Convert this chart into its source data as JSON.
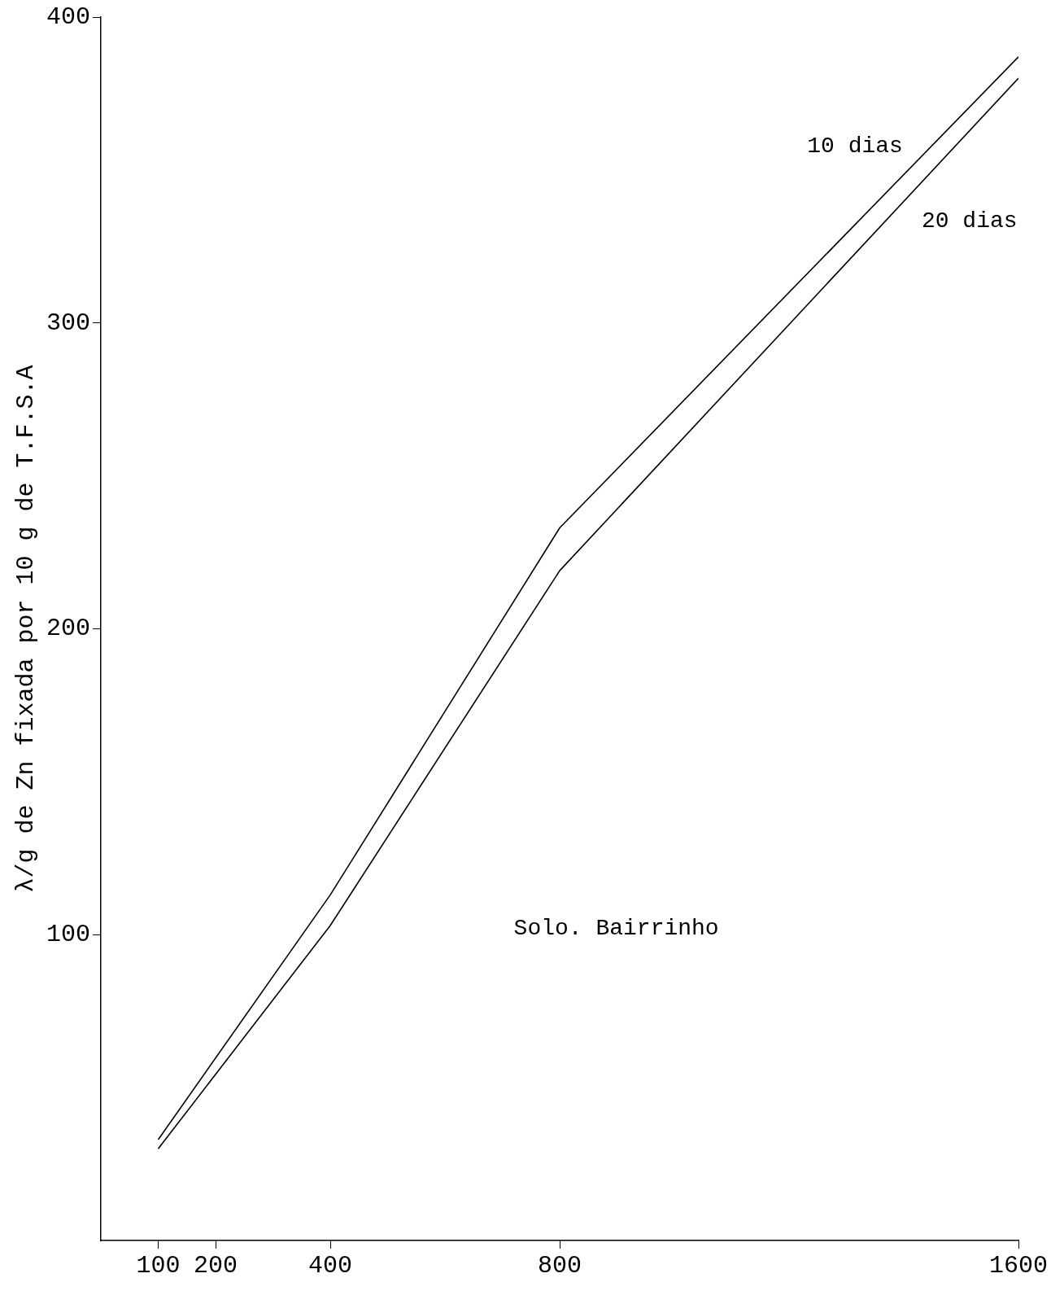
{
  "chart_data": {
    "type": "line",
    "ylabel": "λ/g de Zn fixada por 10 g de T.F.S.A",
    "annotations": [
      "Solo. Bairrinho"
    ],
    "x": [
      100,
      400,
      800,
      1600
    ],
    "series": [
      {
        "name": "10 dias",
        "color": "#000000",
        "values": [
          33,
          113,
          233,
          387
        ]
      },
      {
        "name": "20 dias",
        "color": "#000000",
        "values": [
          30,
          103,
          219,
          380
        ]
      }
    ],
    "xlim": [
      0,
      1600
    ],
    "xticks": [
      100,
      200,
      400,
      800,
      1600
    ],
    "ylim": [
      0,
      400
    ],
    "yticks": [
      100,
      200,
      300,
      400
    ],
    "grid": false,
    "legend": false,
    "marker": "none",
    "line_style": "solid"
  }
}
